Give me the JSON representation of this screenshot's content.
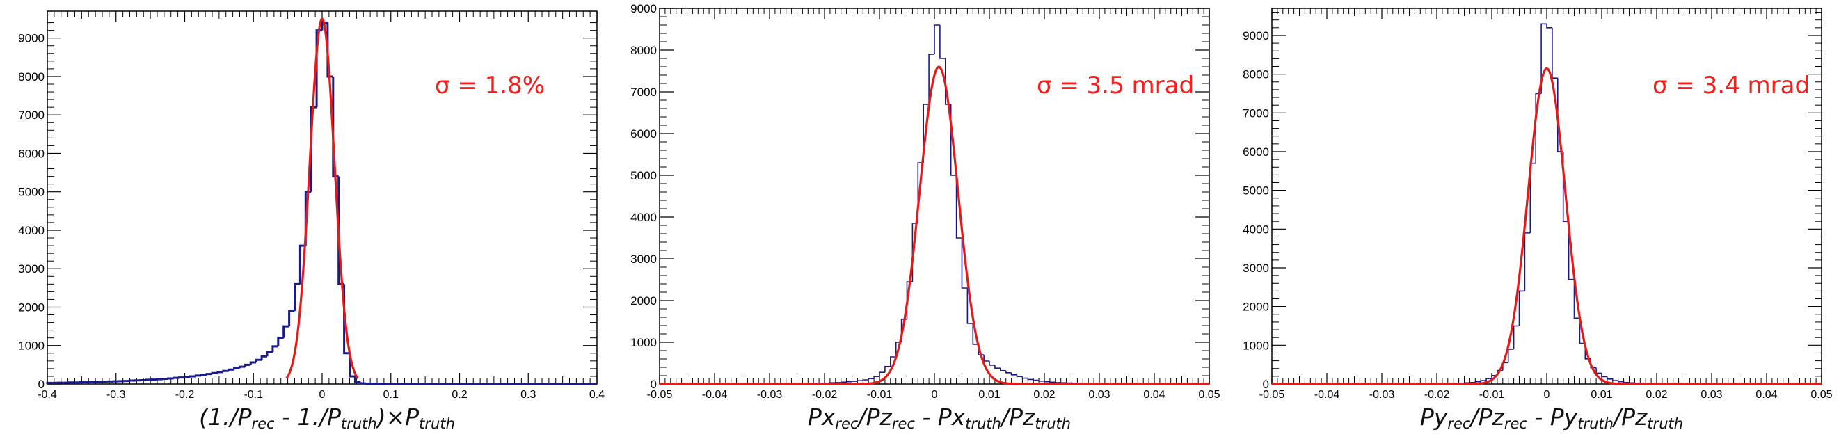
{
  "colors": {
    "hist": "#1a1a8c",
    "fit": "#e61919",
    "annotation": "#ff1a1a",
    "axis": "#000000"
  },
  "chart_data": [
    {
      "type": "bar",
      "annotation": "σ = 1.8%",
      "xlabel_parts": [
        {
          "t": "(1./P"
        },
        {
          "s": "rec"
        },
        {
          "t": " - 1./P"
        },
        {
          "s": "truth"
        },
        {
          "t": ")×P"
        },
        {
          "s": "truth"
        }
      ],
      "xlim": [
        -0.4,
        0.4
      ],
      "ylim": [
        0,
        9700
      ],
      "xticks": [
        -0.4,
        -0.3,
        -0.2,
        -0.1,
        0,
        0.1,
        0.2,
        0.3,
        0.4
      ],
      "xtick_labels": [
        "-0.4",
        "-0.3",
        "-0.2",
        "-0.1",
        "0",
        "0.1",
        "0.2",
        "0.3",
        "0.4"
      ],
      "yticks": [
        0,
        1000,
        2000,
        3000,
        4000,
        5000,
        6000,
        7000,
        8000,
        9000
      ],
      "ytick_labels": [
        "0",
        "1000",
        "2000",
        "3000",
        "4000",
        "5000",
        "6000",
        "7000",
        "8000",
        "9000"
      ],
      "hist_style": "thick",
      "bin_width": 0.008,
      "bin_edges": [
        -0.4,
        -0.392,
        -0.384,
        -0.376,
        -0.368,
        -0.36,
        -0.352,
        -0.344,
        -0.336,
        -0.328,
        -0.32,
        -0.312,
        -0.304,
        -0.296,
        -0.288,
        -0.28,
        -0.272,
        -0.264,
        -0.256,
        -0.248,
        -0.24,
        -0.232,
        -0.224,
        -0.216,
        -0.208,
        -0.2,
        -0.192,
        -0.184,
        -0.176,
        -0.168,
        -0.16,
        -0.152,
        -0.144,
        -0.136,
        -0.128,
        -0.12,
        -0.112,
        -0.104,
        -0.096,
        -0.088,
        -0.08,
        -0.072,
        -0.064,
        -0.056,
        -0.048,
        -0.04,
        -0.032,
        -0.024,
        -0.016,
        -0.008,
        0,
        0.008,
        0.016,
        0.024,
        0.032,
        0.04,
        0.048,
        0.056,
        0.064,
        0.072,
        0.08,
        0.088,
        0.096,
        0.104,
        0.112,
        0.12,
        0.128,
        0.136,
        0.144,
        0.152,
        0.16,
        0.168,
        0.176,
        0.184,
        0.192,
        0.2,
        0.208,
        0.216,
        0.224,
        0.232,
        0.24,
        0.248,
        0.256,
        0.264,
        0.272,
        0.28,
        0.288,
        0.296,
        0.304,
        0.312,
        0.32,
        0.328,
        0.336,
        0.344,
        0.352,
        0.36,
        0.368,
        0.376,
        0.384,
        0.392,
        0.4
      ],
      "bin_values": [
        30,
        30,
        35,
        35,
        40,
        40,
        45,
        45,
        50,
        55,
        60,
        65,
        70,
        75,
        80,
        90,
        95,
        100,
        110,
        115,
        125,
        135,
        145,
        160,
        170,
        185,
        200,
        220,
        240,
        260,
        285,
        310,
        340,
        375,
        410,
        450,
        500,
        560,
        630,
        720,
        830,
        980,
        1200,
        1500,
        1900,
        2600,
        3600,
        5000,
        7200,
        9200,
        9400,
        8000,
        5400,
        2600,
        800,
        200,
        50,
        15,
        10,
        5,
        5,
        0,
        0,
        0,
        0,
        0,
        0,
        0,
        0,
        0,
        0,
        0,
        0,
        0,
        0,
        0,
        0,
        0,
        0,
        0,
        0,
        0,
        0,
        0,
        0,
        0,
        0,
        0,
        0,
        0,
        0,
        0,
        0,
        0,
        0,
        0,
        0,
        0,
        0,
        0
      ],
      "fit": {
        "type": "gaussian",
        "mean": 0.0,
        "sigma": 0.018,
        "amplitude": 9500,
        "range": [
          -0.052,
          0.052
        ]
      }
    },
    {
      "type": "bar",
      "annotation": "σ = 3.5 mrad",
      "xlabel_parts": [
        {
          "t": "Px"
        },
        {
          "s": "rec"
        },
        {
          "t": "/Pz"
        },
        {
          "s": "rec"
        },
        {
          "t": " - Px"
        },
        {
          "s": "truth"
        },
        {
          "t": "/Pz"
        },
        {
          "s": "truth"
        }
      ],
      "xlim": [
        -0.05,
        0.05
      ],
      "ylim": [
        0,
        9000
      ],
      "xticks": [
        -0.05,
        -0.04,
        -0.03,
        -0.02,
        -0.01,
        0,
        0.01,
        0.02,
        0.03,
        0.04,
        0.05
      ],
      "xtick_labels": [
        "-0.05",
        "-0.04",
        "-0.03",
        "-0.02",
        "-0.01",
        "0",
        "0.01",
        "0.02",
        "0.03",
        "0.04",
        "0.05"
      ],
      "yticks": [
        0,
        1000,
        2000,
        3000,
        4000,
        5000,
        6000,
        7000,
        8000,
        9000
      ],
      "ytick_labels": [
        "0",
        "1000",
        "2000",
        "3000",
        "4000",
        "5000",
        "6000",
        "7000",
        "8000",
        "9000"
      ],
      "hist_style": "thin",
      "bin_width": 0.001,
      "bin_edges": [
        -0.05,
        -0.049,
        -0.048,
        -0.047,
        -0.046,
        -0.045,
        -0.044,
        -0.043,
        -0.042,
        -0.041,
        -0.04,
        -0.039,
        -0.038,
        -0.037,
        -0.036,
        -0.035,
        -0.034,
        -0.033,
        -0.032,
        -0.031,
        -0.03,
        -0.029,
        -0.028,
        -0.027,
        -0.026,
        -0.025,
        -0.024,
        -0.023,
        -0.022,
        -0.021,
        -0.02,
        -0.019,
        -0.018,
        -0.017,
        -0.016,
        -0.015,
        -0.014,
        -0.013,
        -0.012,
        -0.011,
        -0.01,
        -0.009,
        -0.008,
        -0.007,
        -0.006,
        -0.005,
        -0.004,
        -0.003,
        -0.002,
        -0.001,
        0,
        0.001,
        0.002,
        0.003,
        0.004,
        0.005,
        0.006,
        0.007,
        0.008,
        0.009,
        0.01,
        0.011,
        0.012,
        0.013,
        0.014,
        0.015,
        0.016,
        0.017,
        0.018,
        0.019,
        0.02,
        0.021,
        0.022,
        0.023,
        0.024,
        0.025,
        0.026,
        0.027,
        0.028,
        0.029,
        0.03,
        0.031,
        0.032,
        0.033,
        0.034,
        0.035,
        0.036,
        0.037,
        0.038,
        0.039,
        0.04,
        0.041,
        0.042,
        0.043,
        0.044,
        0.045,
        0.046,
        0.047,
        0.048,
        0.049,
        0.05
      ],
      "bin_values": [
        0,
        0,
        0,
        0,
        0,
        0,
        0,
        0,
        0,
        0,
        0,
        0,
        0,
        0,
        0,
        0,
        0,
        0,
        0,
        0,
        0,
        0,
        0,
        0,
        5,
        5,
        10,
        10,
        15,
        20,
        20,
        30,
        35,
        45,
        55,
        65,
        80,
        100,
        130,
        180,
        280,
        420,
        650,
        1000,
        1550,
        2450,
        3850,
        5300,
        6700,
        7900,
        8600,
        7800,
        6700,
        5000,
        3500,
        2300,
        1450,
        950,
        700,
        550,
        450,
        380,
        320,
        270,
        220,
        180,
        140,
        110,
        90,
        70,
        55,
        45,
        35,
        30,
        25,
        20,
        15,
        10,
        10,
        5,
        5,
        5,
        0,
        0,
        0,
        0,
        0,
        0,
        0,
        0,
        0,
        0,
        0,
        0,
        0,
        0,
        0,
        0,
        0,
        0
      ],
      "fit": {
        "type": "gaussian",
        "mean": 0.0008,
        "sigma": 0.0035,
        "amplitude": 7600,
        "range": [
          -0.05,
          0.05
        ]
      }
    },
    {
      "type": "bar",
      "annotation": "σ = 3.4 mrad",
      "xlabel_parts": [
        {
          "t": "Py"
        },
        {
          "s": "rec"
        },
        {
          "t": "/Pz"
        },
        {
          "s": "rec"
        },
        {
          "t": " - Py"
        },
        {
          "s": "truth"
        },
        {
          "t": "/Pz"
        },
        {
          "s": "truth"
        }
      ],
      "xlim": [
        -0.05,
        0.05
      ],
      "ylim": [
        0,
        9700
      ],
      "xticks": [
        -0.05,
        -0.04,
        -0.03,
        -0.02,
        -0.01,
        0,
        0.01,
        0.02,
        0.03,
        0.04,
        0.05
      ],
      "xtick_labels": [
        "-0.05",
        "-0.04",
        "-0.03",
        "-0.02",
        "-0.01",
        "0",
        "0.01",
        "0.02",
        "0.03",
        "0.04",
        "0.05"
      ],
      "yticks": [
        0,
        1000,
        2000,
        3000,
        4000,
        5000,
        6000,
        7000,
        8000,
        9000
      ],
      "ytick_labels": [
        "0",
        "1000",
        "2000",
        "3000",
        "4000",
        "5000",
        "6000",
        "7000",
        "8000",
        "9000"
      ],
      "hist_style": "thin",
      "bin_width": 0.001,
      "bin_edges": [
        -0.05,
        -0.049,
        -0.048,
        -0.047,
        -0.046,
        -0.045,
        -0.044,
        -0.043,
        -0.042,
        -0.041,
        -0.04,
        -0.039,
        -0.038,
        -0.037,
        -0.036,
        -0.035,
        -0.034,
        -0.033,
        -0.032,
        -0.031,
        -0.03,
        -0.029,
        -0.028,
        -0.027,
        -0.026,
        -0.025,
        -0.024,
        -0.023,
        -0.022,
        -0.021,
        -0.02,
        -0.019,
        -0.018,
        -0.017,
        -0.016,
        -0.015,
        -0.014,
        -0.013,
        -0.012,
        -0.011,
        -0.01,
        -0.009,
        -0.008,
        -0.007,
        -0.006,
        -0.005,
        -0.004,
        -0.003,
        -0.002,
        -0.001,
        0,
        0.001,
        0.002,
        0.003,
        0.004,
        0.005,
        0.006,
        0.007,
        0.008,
        0.009,
        0.01,
        0.011,
        0.012,
        0.013,
        0.014,
        0.015,
        0.016,
        0.017,
        0.018,
        0.019,
        0.02,
        0.021,
        0.022,
        0.023,
        0.024,
        0.025,
        0.026,
        0.027,
        0.028,
        0.029,
        0.03,
        0.031,
        0.032,
        0.033,
        0.034,
        0.035,
        0.036,
        0.037,
        0.038,
        0.039,
        0.04,
        0.041,
        0.042,
        0.043,
        0.044,
        0.045,
        0.046,
        0.047,
        0.048,
        0.049,
        0.05
      ],
      "bin_values": [
        0,
        0,
        0,
        0,
        0,
        0,
        0,
        0,
        0,
        0,
        0,
        0,
        0,
        0,
        0,
        0,
        0,
        0,
        0,
        0,
        0,
        0,
        0,
        0,
        0,
        0,
        0,
        0,
        0,
        0,
        5,
        5,
        10,
        15,
        20,
        30,
        40,
        60,
        90,
        140,
        220,
        350,
        550,
        900,
        1500,
        2400,
        3900,
        5700,
        7500,
        9300,
        9200,
        7900,
        6000,
        4200,
        2700,
        1700,
        1050,
        650,
        420,
        280,
        190,
        130,
        90,
        60,
        40,
        30,
        20,
        15,
        10,
        5,
        5,
        0,
        0,
        0,
        0,
        0,
        0,
        0,
        0,
        0,
        0,
        0,
        0,
        0,
        0,
        0,
        0,
        0,
        0,
        0,
        0,
        0,
        0,
        0,
        0,
        0,
        0,
        0,
        0,
        0
      ],
      "fit": {
        "type": "gaussian",
        "mean": 0.0,
        "sigma": 0.0034,
        "amplitude": 8150,
        "range": [
          -0.05,
          0.05
        ]
      }
    }
  ]
}
